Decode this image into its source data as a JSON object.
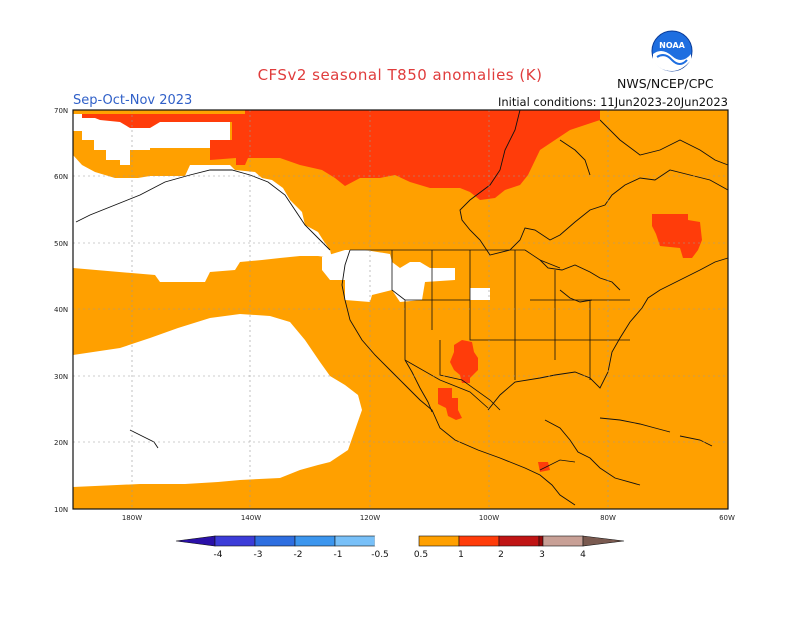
{
  "header": {
    "title": "CFSv2 seasonal T850 anomalies (K)",
    "season": "Sep-Oct-Nov 2023",
    "initial_conditions": "Initial conditions: 11Jun2023-20Jun2023",
    "agency": "NWS/NCEP/CPC",
    "logo_text": "NOAA"
  },
  "map": {
    "lat_ticks": [
      "70N",
      "60N",
      "50N",
      "40N",
      "30N",
      "20N",
      "10N"
    ],
    "lon_ticks": [
      "180W",
      "140W",
      "120W",
      "100W",
      "80W",
      "60W"
    ],
    "colors": {
      "background": "#ffffff",
      "anomaly_0_5_to_1": "#ffa000",
      "anomaly_1_to_2": "#ff3c0a",
      "border": "#111111",
      "grid": "#9a9a9a"
    }
  },
  "colorbar": {
    "labels": [
      "-4",
      "-3",
      "-2",
      "-1",
      "-0.5",
      "0.5",
      "1",
      "2",
      "3",
      "4"
    ],
    "colors": [
      "#2a10a8",
      "#3c3cd8",
      "#2e6ee0",
      "#3c96ee",
      "#78c0f8",
      "#ffffff",
      "#ffa000",
      "#ff3c0a",
      "#c01414",
      "#9a0a0a",
      "#c8a096",
      "#7a5a50"
    ]
  }
}
